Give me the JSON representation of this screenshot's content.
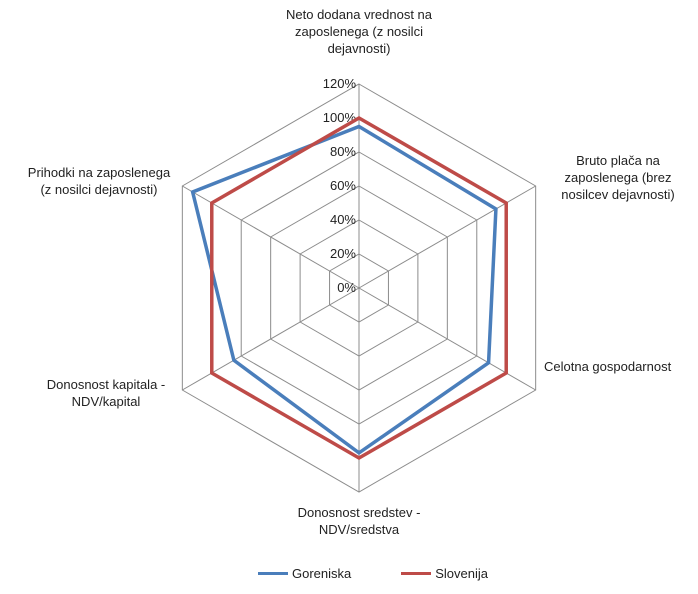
{
  "chart_data": {
    "type": "radar",
    "title": "",
    "axes": [
      "Neto dodana vrednost na zaposlenega (z nosilci dejavnosti)",
      "Bruto plača na zaposlenega (brez nosilcev dejavnosti)",
      "Celotna gospodarnost",
      "Donosnost sredstev - NDV/sredstva",
      "Donosnost kapitala - NDV/kapital",
      "Prihodki na zaposlenega (z nosilci dejavnosti)"
    ],
    "axis_label_lines": [
      [
        "Neto dodana vrednost na",
        "zaposlenega (z nosilci",
        "dejavnosti)"
      ],
      [
        "Bruto plača na",
        "zaposlenega (brez",
        "nosilcev dejavnosti)"
      ],
      [
        "Celotna gospodarnost"
      ],
      [
        "Donosnost sredstev -",
        "NDV/sredstva"
      ],
      [
        "Donosnost kapitala -",
        "NDV/kapital"
      ],
      [
        "Prihodki na zaposlenega",
        "(z nosilci dejavnosti)"
      ]
    ],
    "ticks": [
      "0%",
      "20%",
      "40%",
      "60%",
      "80%",
      "100%",
      "120%"
    ],
    "rlim": [
      0,
      120
    ],
    "grid": true,
    "legend_position": "bottom",
    "series": [
      {
        "name": "Goreniska",
        "color": "#4a7ebb",
        "values": [
          95,
          93,
          88,
          97,
          85,
          113
        ]
      },
      {
        "name": "Slovenija",
        "color": "#be4b48",
        "values": [
          100,
          100,
          100,
          100,
          100,
          100
        ]
      }
    ]
  }
}
